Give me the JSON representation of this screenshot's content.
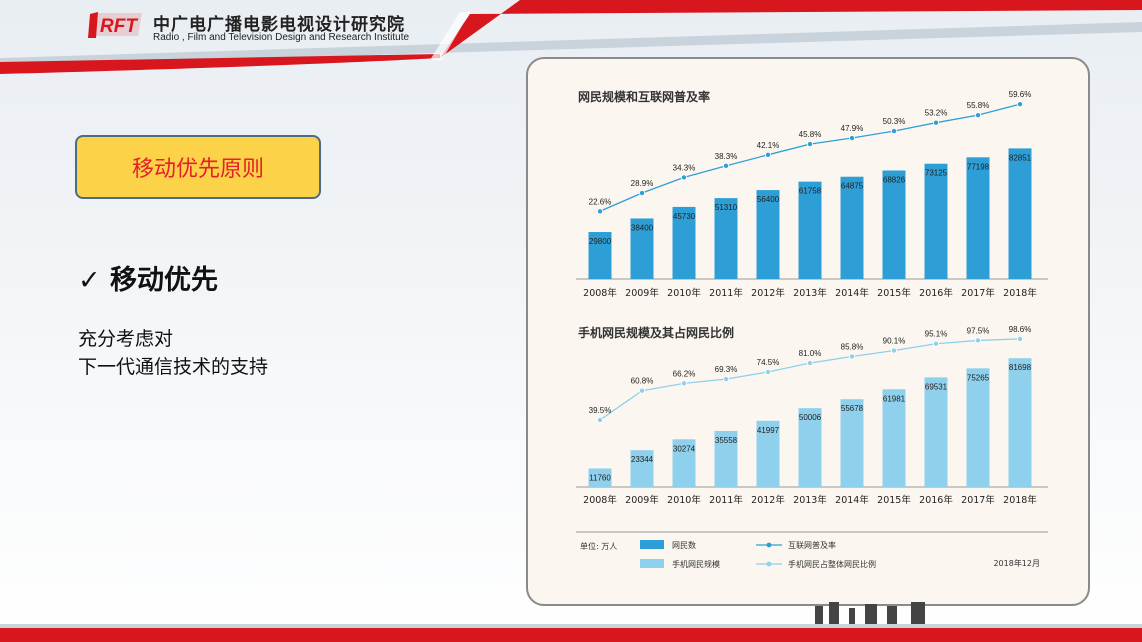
{
  "header": {
    "logo_text": "RFT",
    "org_name_cn": "中广电广播电影电视设计研究院",
    "org_name_en": "Radio , Film and Television Design and Research Institute",
    "accent_color": "#d7161d"
  },
  "slide": {
    "title": "移动优先原则",
    "bullet_check": "✓",
    "bullet_text": "移动优先",
    "desc_line1": "充分考虑对",
    "desc_line2": "下一代通信技术的支持"
  },
  "chart_data": [
    {
      "type": "bar",
      "title": "网民规模和互联网普及率",
      "categories": [
        "2008年",
        "2009年",
        "2010年",
        "2011年",
        "2012年",
        "2013年",
        "2014年",
        "2015年",
        "2016年",
        "2017年",
        "2018年"
      ],
      "series": [
        {
          "name": "网民数",
          "type": "bar",
          "values": [
            29800,
            38400,
            45730,
            51310,
            56400,
            61758,
            64875,
            68826,
            73125,
            77198,
            82851
          ],
          "color": "#2e9fd6"
        },
        {
          "name": "互联网普及率",
          "type": "line",
          "values": [
            22.6,
            28.9,
            34.3,
            38.3,
            42.1,
            45.8,
            47.9,
            50.3,
            53.2,
            55.8,
            59.6
          ],
          "labels": [
            "22.6%",
            "28.9%",
            "34.3%",
            "38.3%",
            "42.1%",
            "45.8%",
            "47.9%",
            "50.3%",
            "53.2%",
            "55.8%",
            "59.6%"
          ],
          "color": "#2e9fd6"
        }
      ]
    },
    {
      "type": "bar",
      "title": "手机网民规模及其占网民比例",
      "categories": [
        "2008年",
        "2009年",
        "2010年",
        "2011年",
        "2012年",
        "2013年",
        "2014年",
        "2015年",
        "2016年",
        "2017年",
        "2018年"
      ],
      "series": [
        {
          "name": "手机网民规模",
          "type": "bar",
          "values": [
            11760,
            23344,
            30274,
            35558,
            41997,
            50006,
            55678,
            61981,
            69531,
            75265,
            81698
          ],
          "color": "#8fd0ec"
        },
        {
          "name": "手机网民占整体网民比例",
          "type": "line",
          "values": [
            39.5,
            60.8,
            66.2,
            69.3,
            74.5,
            81.0,
            85.8,
            90.1,
            95.1,
            97.5,
            98.6
          ],
          "labels": [
            "39.5%",
            "60.8%",
            "66.2%",
            "69.3%",
            "74.5%",
            "81.0%",
            "85.8%",
            "90.1%",
            "95.1%",
            "97.5%",
            "98.6%"
          ],
          "color": "#8fd0ec"
        }
      ]
    }
  ],
  "legend": {
    "unit_label": "单位: 万人",
    "items": [
      {
        "label": "网民数",
        "kind": "bar",
        "color": "#2e9fd6"
      },
      {
        "label": "互联网普及率",
        "kind": "line",
        "color": "#2e9fd6"
      },
      {
        "label": "手机网民规模",
        "kind": "bar",
        "color": "#8fd0ec"
      },
      {
        "label": "手机网民占整体网民比例",
        "kind": "line",
        "color": "#8fd0ec"
      }
    ],
    "date": "2018年12月"
  }
}
